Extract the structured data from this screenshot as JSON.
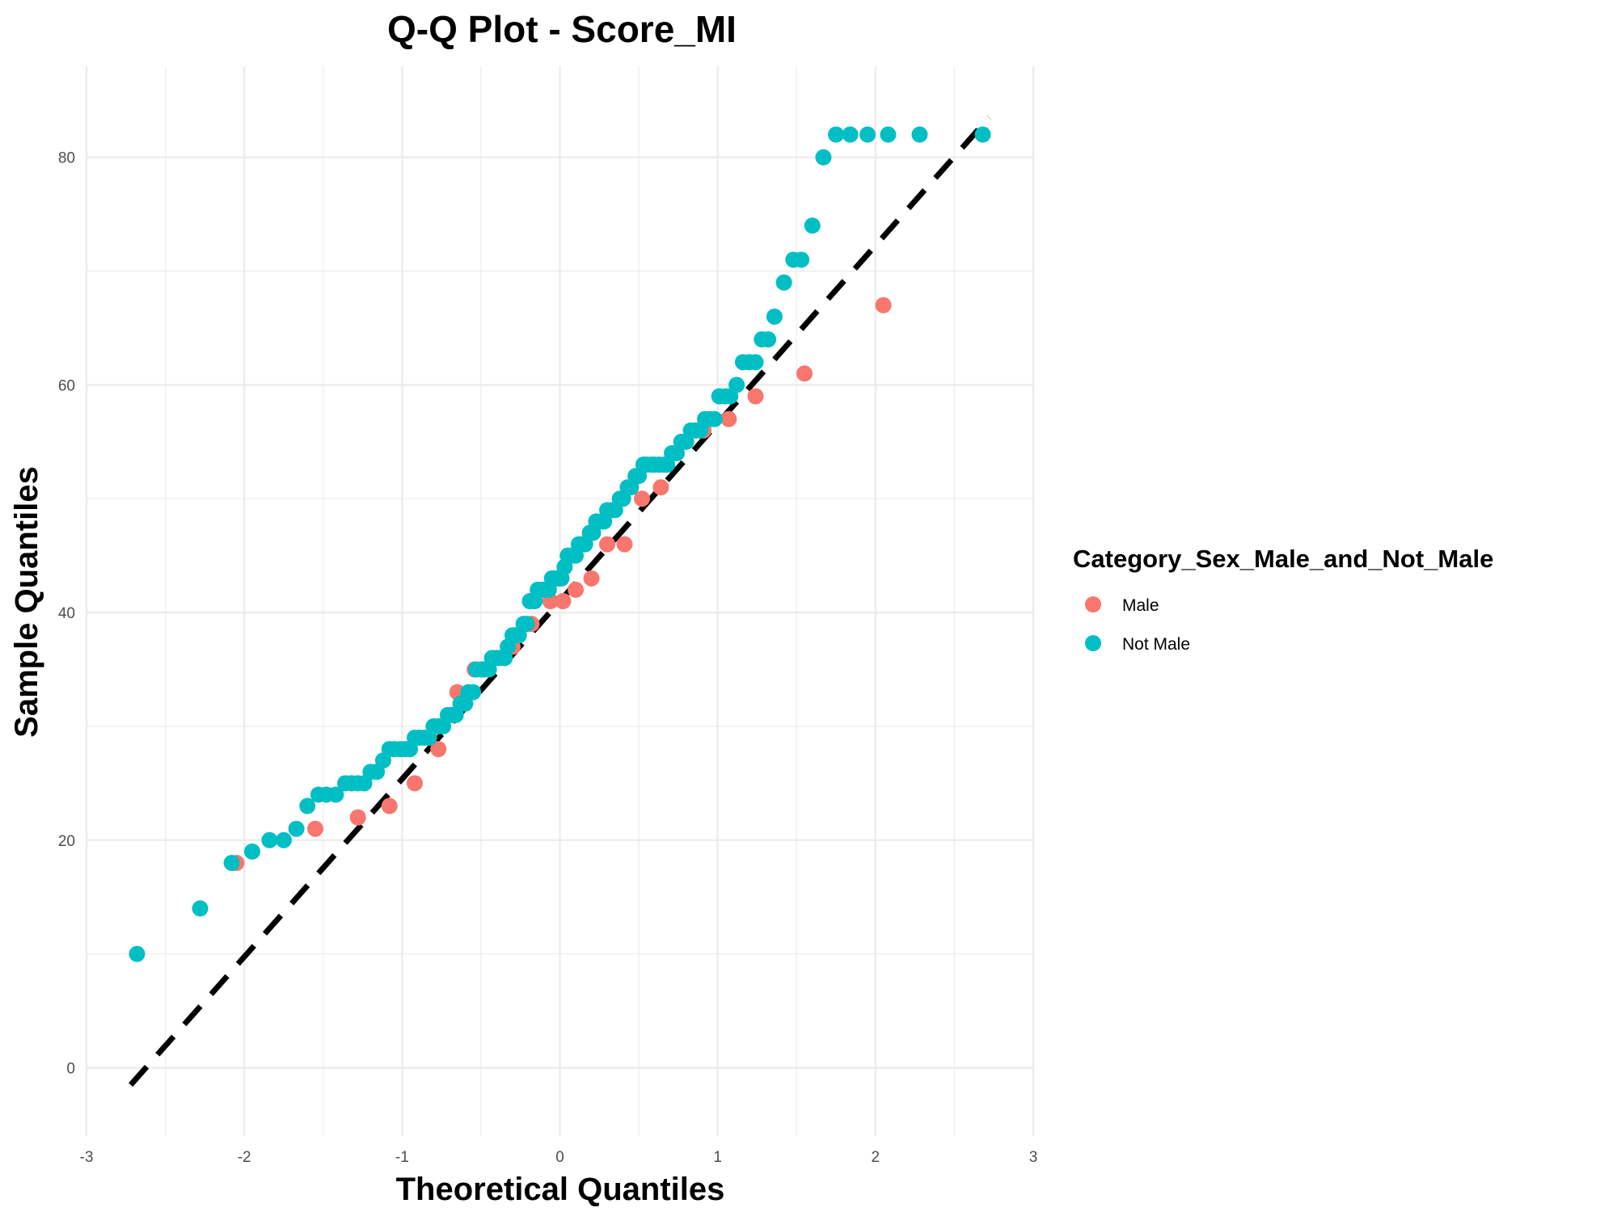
{
  "chart_data": {
    "type": "scatter",
    "title": "Q-Q Plot -  Score_MI",
    "xlabel": "Theoretical Quantiles",
    "ylabel": "Sample Quantiles",
    "xlim": [
      -3,
      3
    ],
    "ylim": [
      -6,
      88
    ],
    "x_ticks": [
      -3,
      -2,
      -1,
      0,
      1,
      2,
      3
    ],
    "x_tick_labels": [
      "-3",
      "-2",
      "-1",
      "0",
      "1",
      "2",
      "3"
    ],
    "y_ticks": [
      0,
      20,
      40,
      60,
      80
    ],
    "y_tick_labels": [
      "0",
      "20",
      "40",
      "60",
      "80"
    ],
    "grid": true,
    "legend": {
      "title": "Category_Sex_Male_and_Not_Male",
      "position": "right"
    },
    "reference_line": {
      "style": "dashed",
      "color": "#000000",
      "x": [
        -2.72,
        2.72
      ],
      "y": [
        -1.5,
        83.5
      ]
    },
    "series": [
      {
        "name": "Male",
        "color": "#F8766D",
        "x": [
          -2.05,
          -1.55,
          -1.28,
          -1.08,
          -0.92,
          -0.77,
          -0.65,
          -0.54,
          -0.42,
          -0.3,
          -0.18,
          -0.06,
          0.02,
          0.1,
          0.2,
          0.3,
          0.41,
          0.52,
          0.64,
          0.77,
          0.91,
          1.07,
          1.24,
          1.55,
          2.05
        ],
        "y": [
          18,
          21,
          22,
          23,
          25,
          28,
          33,
          35,
          36,
          37,
          39,
          41,
          41,
          42,
          43,
          46,
          46,
          50,
          51,
          55,
          56,
          57,
          59,
          61,
          67
        ]
      },
      {
        "name": "Not Male",
        "color": "#00BFC4",
        "x": [
          -2.68,
          -2.28,
          -2.08,
          -1.95,
          -1.84,
          -1.75,
          -1.67,
          -1.6,
          -1.53,
          -1.48,
          -1.42,
          -1.36,
          -1.32,
          -1.28,
          -1.24,
          -1.2,
          -1.16,
          -1.12,
          -1.08,
          -1.05,
          -1.01,
          -0.98,
          -0.95,
          -0.92,
          -0.89,
          -0.86,
          -0.83,
          -0.8,
          -0.77,
          -0.74,
          -0.71,
          -0.68,
          -0.66,
          -0.63,
          -0.6,
          -0.58,
          -0.55,
          -0.53,
          -0.5,
          -0.48,
          -0.45,
          -0.43,
          -0.4,
          -0.38,
          -0.35,
          -0.33,
          -0.3,
          -0.28,
          -0.26,
          -0.23,
          -0.21,
          -0.19,
          -0.16,
          -0.14,
          -0.12,
          -0.1,
          -0.07,
          -0.05,
          -0.03,
          -0.01,
          0.01,
          0.03,
          0.05,
          0.07,
          0.1,
          0.12,
          0.14,
          0.16,
          0.19,
          0.21,
          0.23,
          0.26,
          0.28,
          0.3,
          0.33,
          0.35,
          0.38,
          0.4,
          0.43,
          0.45,
          0.48,
          0.5,
          0.53,
          0.55,
          0.58,
          0.6,
          0.63,
          0.66,
          0.68,
          0.71,
          0.74,
          0.77,
          0.8,
          0.83,
          0.86,
          0.89,
          0.92,
          0.95,
          0.98,
          1.01,
          1.05,
          1.08,
          1.12,
          1.16,
          1.2,
          1.24,
          1.28,
          1.32,
          1.36,
          1.42,
          1.48,
          1.53,
          1.6,
          1.67,
          1.75,
          1.84,
          1.95,
          2.08,
          2.28,
          2.68
        ],
        "y": [
          10,
          14,
          18,
          19,
          20,
          20,
          21,
          23,
          24,
          24,
          24,
          25,
          25,
          25,
          25,
          26,
          26,
          27,
          28,
          28,
          28,
          28,
          28,
          29,
          29,
          29,
          29,
          30,
          30,
          30,
          31,
          31,
          31,
          32,
          32,
          33,
          33,
          35,
          35,
          35,
          35,
          36,
          36,
          36,
          36,
          37,
          38,
          38,
          38,
          39,
          39,
          41,
          41,
          42,
          42,
          42,
          42,
          43,
          43,
          43,
          43,
          44,
          45,
          45,
          45,
          46,
          46,
          46,
          47,
          47,
          48,
          48,
          48,
          49,
          49,
          49,
          50,
          50,
          51,
          51,
          52,
          52,
          53,
          53,
          53,
          53,
          53,
          53,
          53,
          54,
          54,
          55,
          55,
          56,
          56,
          56,
          57,
          57,
          57,
          59,
          59,
          59,
          60,
          62,
          62,
          62,
          64,
          64,
          66,
          69,
          71,
          71,
          74,
          80,
          82,
          82,
          82,
          82,
          82,
          82
        ],
        "_x_note": ""
      }
    ]
  }
}
